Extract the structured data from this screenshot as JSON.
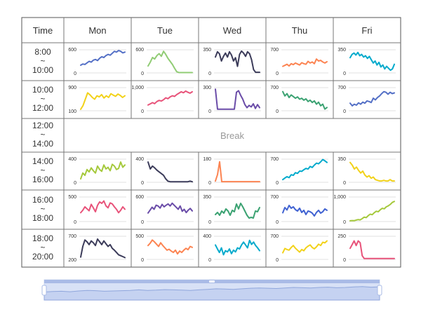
{
  "header": {
    "time_label": "Time",
    "days": [
      "Mon",
      "Tue",
      "Wed",
      "Thu",
      "Fri"
    ]
  },
  "slots": [
    {
      "start": "8:00",
      "sep": "~",
      "end": "10:00"
    },
    {
      "start": "10:00",
      "sep": "~",
      "end": "12:00"
    },
    {
      "start": "12:00",
      "sep": "~",
      "end": "14:00",
      "break": true
    },
    {
      "start": "14:00",
      "sep": "~",
      "end": "16:00"
    },
    {
      "start": "16:00",
      "sep": "~",
      "end": "18:00"
    },
    {
      "start": "18:00",
      "sep": "~",
      "end": "20:00"
    }
  ],
  "break_label": "Break",
  "colors": {
    "palette": [
      "#5470c6",
      "#91cc75",
      "#fac858",
      "#ee6666",
      "#73c0de",
      "#3ba272",
      "#fc8452",
      "#9a60b4",
      "#ea7ccc"
    ],
    "grid_line": "#999999",
    "separator": "#e0e0e0",
    "zoom_fill": "#c7d3f2",
    "zoom_track": "#eef2fb",
    "zoom_line": "#8fa6dc"
  },
  "chart_data": [
    {
      "type": "line",
      "slot": "8:00~10:00",
      "day": "Mon",
      "color": "#5470c6",
      "ylim": [
        0,
        600
      ],
      "tick_labels": [
        "0",
        "600"
      ],
      "values": [
        200,
        230,
        220,
        260,
        300,
        280,
        330,
        350,
        320,
        380,
        420,
        400,
        450,
        480,
        460,
        510,
        560,
        540,
        580,
        560,
        520,
        540
      ]
    },
    {
      "type": "line",
      "slot": "8:00~10:00",
      "day": "Tue",
      "color": "#91cc75",
      "ylim": [
        0,
        600
      ],
      "tick_labels": [
        "0",
        "600"
      ],
      "values": [
        180,
        280,
        400,
        360,
        450,
        500,
        430,
        560,
        480,
        380,
        300,
        220,
        120,
        30,
        10,
        10,
        10,
        10,
        10,
        10,
        10
      ]
    },
    {
      "type": "line",
      "slot": "8:00~10:00",
      "day": "Wed",
      "color": "#3c3c5a",
      "ylim": [
        0,
        350
      ],
      "tick_labels": [
        "0",
        "350"
      ],
      "values": [
        240,
        320,
        290,
        180,
        250,
        300,
        240,
        320,
        270,
        180,
        230,
        100,
        280,
        330,
        300,
        250,
        320,
        290,
        200,
        50,
        10,
        10,
        10
      ]
    },
    {
      "type": "line",
      "slot": "8:00~10:00",
      "day": "Thu",
      "color": "#fc8452",
      "ylim": [
        0,
        700
      ],
      "tick_labels": [
        "0",
        "700"
      ],
      "values": [
        200,
        230,
        260,
        210,
        280,
        250,
        300,
        270,
        240,
        310,
        280,
        260,
        350,
        300,
        330,
        280,
        420,
        360,
        380,
        330,
        300,
        340
      ]
    },
    {
      "type": "line",
      "slot": "8:00~10:00",
      "day": "Fri",
      "color": "#00aacc",
      "ylim": [
        0,
        350
      ],
      "tick_labels": [
        "0",
        "350"
      ],
      "values": [
        230,
        280,
        300,
        270,
        310,
        260,
        280,
        240,
        260,
        220,
        250,
        200,
        150,
        180,
        120,
        160,
        90,
        120,
        60,
        100,
        70,
        40,
        60,
        130
      ]
    },
    {
      "type": "line",
      "slot": "10:00~12:00",
      "day": "Mon",
      "color": "#f2d21a",
      "ylim": [
        100,
        900
      ],
      "tick_labels": [
        "100",
        "900"
      ],
      "values": [
        150,
        280,
        500,
        720,
        650,
        560,
        500,
        620,
        580,
        660,
        540,
        620,
        560,
        690,
        640,
        600,
        680,
        630,
        560,
        620
      ]
    },
    {
      "type": "line",
      "slot": "10:00~12:00",
      "day": "Tue",
      "color": "#e8537a",
      "ylim": [
        0,
        1000
      ],
      "tick_labels": [
        "0",
        "1,000"
      ],
      "values": [
        250,
        300,
        350,
        310,
        400,
        450,
        420,
        480,
        560,
        520,
        600,
        650,
        620,
        700,
        760,
        820,
        780,
        850,
        800,
        760,
        820
      ]
    },
    {
      "type": "line",
      "slot": "10:00~12:00",
      "day": "Wed",
      "color": "#6a4ca8",
      "ylim": [
        0,
        300
      ],
      "tick_labels": [
        "0",
        "300"
      ],
      "values": [
        280,
        20,
        20,
        20,
        20,
        20,
        20,
        20,
        20,
        20,
        240,
        260,
        200,
        150,
        80,
        40,
        70,
        50,
        90,
        30,
        80,
        40
      ]
    },
    {
      "type": "line",
      "slot": "10:00~12:00",
      "day": "Thu",
      "color": "#3ba272",
      "ylim": [
        0,
        700
      ],
      "tick_labels": [
        "0",
        "700"
      ],
      "values": [
        580,
        450,
        520,
        400,
        480,
        430,
        380,
        420,
        350,
        380,
        320,
        360,
        280,
        320,
        250,
        300,
        200,
        260,
        150,
        200,
        50,
        100
      ]
    },
    {
      "type": "line",
      "slot": "10:00~12:00",
      "day": "Fri",
      "color": "#5470c6",
      "ylim": [
        0,
        700
      ],
      "tick_labels": [
        "0",
        "700"
      ],
      "values": [
        230,
        150,
        200,
        170,
        240,
        200,
        260,
        230,
        300,
        280,
        250,
        380,
        330,
        400,
        450,
        520,
        580,
        560,
        500,
        560,
        520,
        540
      ]
    },
    {
      "type": "line",
      "slot": "14:00~16:00",
      "day": "Mon",
      "color": "#a5c93c",
      "ylim": [
        0,
        400
      ],
      "tick_labels": [
        "0",
        "400"
      ],
      "values": [
        60,
        160,
        120,
        220,
        180,
        250,
        200,
        160,
        280,
        220,
        190,
        300,
        230,
        260,
        200,
        310,
        280,
        220,
        240,
        350,
        260,
        300
      ]
    },
    {
      "type": "line",
      "slot": "14:00~16:00",
      "day": "Tue",
      "color": "#3c3c5a",
      "ylim": [
        0,
        400
      ],
      "tick_labels": [
        "0",
        "400"
      ],
      "values": [
        350,
        230,
        280,
        250,
        210,
        180,
        150,
        120,
        60,
        20,
        10,
        10,
        10,
        10,
        10,
        10,
        10,
        10,
        10,
        20,
        10
      ]
    },
    {
      "type": "line",
      "slot": "14:00~16:00",
      "day": "Wed",
      "color": "#fc8452",
      "ylim": [
        0,
        180
      ],
      "tick_labels": [
        "0",
        "180"
      ],
      "values": [
        10,
        60,
        160,
        5,
        5,
        5,
        5,
        5,
        5,
        5,
        5,
        5,
        5,
        5,
        5,
        5,
        5,
        5,
        5,
        5,
        5,
        5
      ]
    },
    {
      "type": "line",
      "slot": "14:00~16:00",
      "day": "Thu",
      "color": "#00aacc",
      "ylim": [
        0,
        700
      ],
      "tick_labels": [
        "0",
        "700"
      ],
      "values": [
        80,
        130,
        170,
        140,
        230,
        210,
        290,
        270,
        340,
        330,
        380,
        420,
        400,
        480,
        450,
        520,
        580,
        560,
        620,
        690,
        650,
        600
      ]
    },
    {
      "type": "line",
      "slot": "14:00~16:00",
      "day": "Fri",
      "color": "#f2d21a",
      "ylim": [
        0,
        350
      ],
      "tick_labels": [
        "0",
        "350"
      ],
      "values": [
        300,
        260,
        200,
        230,
        180,
        140,
        170,
        110,
        80,
        100,
        60,
        80,
        40,
        30,
        20,
        20,
        30,
        20,
        20,
        40,
        20,
        20
      ]
    },
    {
      "type": "line",
      "slot": "16:00~18:00",
      "day": "Mon",
      "color": "#e8537a",
      "ylim": [
        0,
        500
      ],
      "tick_labels": [
        "0",
        "500"
      ],
      "values": [
        180,
        230,
        300,
        260,
        220,
        350,
        280,
        200,
        330,
        400,
        370,
        420,
        320,
        280,
        380,
        360,
        300,
        250,
        180,
        230,
        300,
        250
      ]
    },
    {
      "type": "line",
      "slot": "16:00~18:00",
      "day": "Tue",
      "color": "#6a4ca8",
      "ylim": [
        0,
        600
      ],
      "tick_labels": [
        "0",
        "600"
      ],
      "values": [
        210,
        280,
        350,
        300,
        400,
        380,
        330,
        420,
        360,
        400,
        430,
        380,
        450,
        400,
        350,
        300,
        380,
        250,
        300,
        220,
        280,
        320,
        260
      ]
    },
    {
      "type": "line",
      "slot": "16:00~18:00",
      "day": "Wed",
      "color": "#3ba272",
      "ylim": [
        0,
        350
      ],
      "tick_labels": [
        "0",
        "350"
      ],
      "values": [
        100,
        130,
        90,
        150,
        120,
        180,
        150,
        90,
        160,
        140,
        250,
        180,
        260,
        210,
        150,
        90,
        50,
        60,
        50,
        150,
        140,
        200
      ]
    },
    {
      "type": "line",
      "slot": "16:00~18:00",
      "day": "Thu",
      "color": "#4163d2",
      "ylim": [
        0,
        700
      ],
      "tick_labels": [
        "0",
        "700"
      ],
      "values": [
        250,
        400,
        330,
        460,
        380,
        420,
        340,
        300,
        380,
        260,
        320,
        200,
        300,
        280,
        240,
        160,
        260,
        320,
        240,
        280,
        360,
        320
      ]
    },
    {
      "type": "line",
      "slot": "16:00~18:00",
      "day": "Fri",
      "color": "#a5c93c",
      "ylim": [
        0,
        1000
      ],
      "tick_labels": [
        "0",
        "1,000"
      ],
      "values": [
        30,
        40,
        35,
        60,
        80,
        70,
        120,
        180,
        160,
        240,
        300,
        280,
        360,
        420,
        400,
        480,
        540,
        520,
        600,
        640,
        700,
        780,
        820
      ]
    },
    {
      "type": "line",
      "slot": "18:00~20:00",
      "day": "Mon",
      "color": "#3c3c5a",
      "ylim": [
        200,
        700
      ],
      "tick_labels": [
        "200",
        "700"
      ],
      "values": [
        250,
        480,
        620,
        580,
        520,
        600,
        560,
        500,
        640,
        580,
        520,
        600,
        540,
        480,
        520,
        440,
        400,
        350,
        300,
        280,
        260,
        240
      ]
    },
    {
      "type": "line",
      "slot": "18:00~20:00",
      "day": "Tue",
      "color": "#fc8452",
      "ylim": [
        0,
        500
      ],
      "tick_labels": [
        "0",
        "500"
      ],
      "values": [
        300,
        350,
        420,
        380,
        330,
        280,
        360,
        300,
        250,
        200,
        220,
        180,
        150,
        200,
        120,
        180,
        150,
        200,
        240,
        210,
        280,
        260
      ]
    },
    {
      "type": "line",
      "slot": "18:00~20:00",
      "day": "Wed",
      "color": "#00aacc",
      "ylim": [
        0,
        400
      ],
      "tick_labels": [
        "0",
        "400"
      ],
      "values": [
        250,
        180,
        120,
        200,
        80,
        150,
        130,
        180,
        100,
        160,
        130,
        200,
        180,
        250,
        300,
        250,
        200,
        330,
        260,
        300,
        240,
        200,
        150
      ]
    },
    {
      "type": "line",
      "slot": "18:00~20:00",
      "day": "Thu",
      "color": "#f2d21a",
      "ylim": [
        0,
        700
      ],
      "tick_labels": [
        "0",
        "700"
      ],
      "values": [
        200,
        330,
        300,
        280,
        360,
        420,
        340,
        280,
        220,
        300,
        260,
        350,
        400,
        440,
        360,
        320,
        380,
        460,
        420,
        520,
        500,
        560
      ]
    },
    {
      "type": "line",
      "slot": "18:00~20:00",
      "day": "Fri",
      "color": "#e8537a",
      "ylim": [
        0,
        250
      ],
      "tick_labels": [
        "0",
        "250"
      ],
      "values": [
        120,
        160,
        200,
        150,
        200,
        180,
        40,
        10,
        10,
        10,
        10,
        10,
        10,
        10,
        10,
        10,
        10,
        10,
        10,
        10,
        10,
        10,
        10
      ]
    },
    {
      "type": "area",
      "name": "zoom-slider-preview",
      "range_percent": [
        0,
        100
      ],
      "values": [
        30,
        32,
        33,
        31,
        34,
        36,
        35,
        33,
        34,
        35,
        36,
        38,
        36,
        37,
        39,
        38,
        37,
        36,
        38,
        40,
        42,
        41,
        40,
        42,
        44,
        45,
        44,
        43,
        45,
        47,
        46,
        45,
        47,
        48,
        46,
        47,
        49,
        50,
        48,
        49
      ]
    }
  ]
}
